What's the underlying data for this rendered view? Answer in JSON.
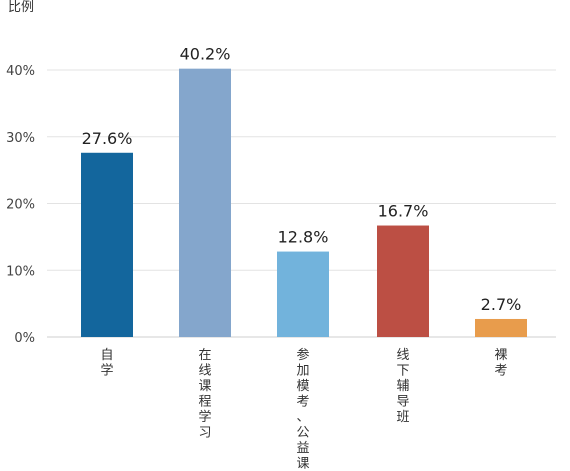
{
  "chart_data": {
    "type": "bar",
    "ylabel": "比例",
    "xlabel": "",
    "ylim": [
      0,
      40
    ],
    "yticks": [
      {
        "value": 0,
        "label": "0%"
      },
      {
        "value": 10,
        "label": "10%"
      },
      {
        "value": 20,
        "label": "20%"
      },
      {
        "value": 30,
        "label": "30%"
      },
      {
        "value": 40,
        "label": "40%"
      }
    ],
    "categories": [
      "自学",
      "在线课程学习",
      "参加模考、公益课堂",
      "线下辅导班",
      "裸考"
    ],
    "values": [
      27.6,
      40.2,
      12.8,
      16.7,
      2.7
    ],
    "data_labels": [
      "27.6%",
      "40.2%",
      "12.8%",
      "16.7%",
      "2.7%"
    ],
    "colors": [
      "#13669d",
      "#84a6cc",
      "#72b3dc",
      "#bc4f44",
      "#e89c4c"
    ],
    "grid": true,
    "legend": "none"
  }
}
